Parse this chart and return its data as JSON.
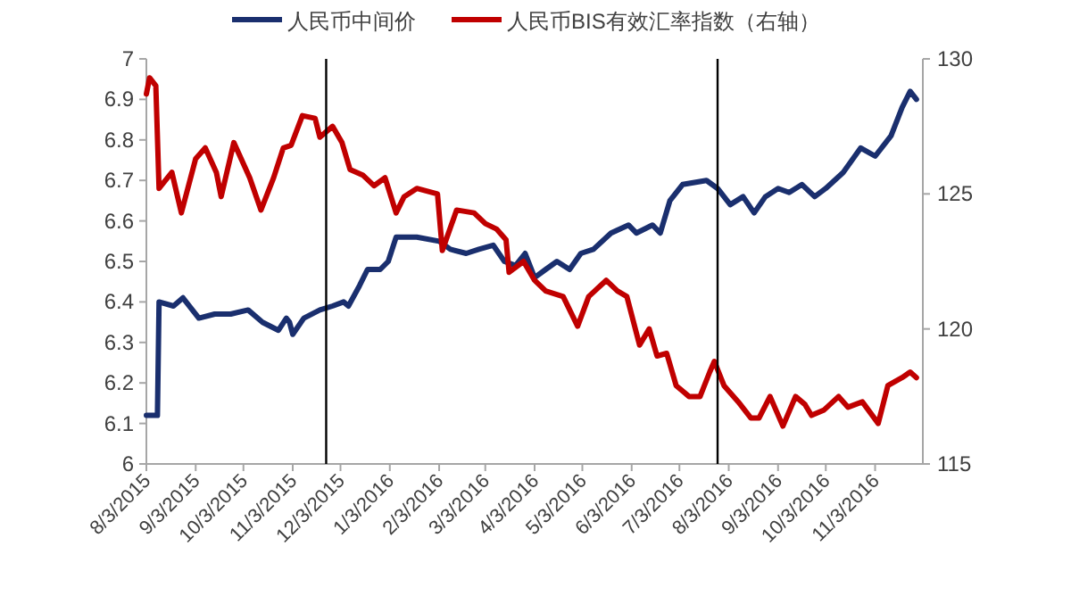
{
  "chart_data": {
    "type": "line",
    "legend": "top",
    "grid": false,
    "line_style": "solid",
    "marker": "none",
    "xlim": [
      "2015-08-03",
      "2016-12-03"
    ],
    "xticks": [
      {
        "value": "2015-08-03",
        "label": "8/3/2015"
      },
      {
        "value": "2015-09-03",
        "label": "9/3/2015"
      },
      {
        "value": "2015-10-03",
        "label": "10/3/2015"
      },
      {
        "value": "2015-11-03",
        "label": "11/3/2015"
      },
      {
        "value": "2015-12-03",
        "label": "12/3/2015"
      },
      {
        "value": "2016-01-03",
        "label": "1/3/2016"
      },
      {
        "value": "2016-02-03",
        "label": "2/3/2016"
      },
      {
        "value": "2016-03-03",
        "label": "3/3/2016"
      },
      {
        "value": "2016-04-03",
        "label": "4/3/2016"
      },
      {
        "value": "2016-05-03",
        "label": "5/3/2016"
      },
      {
        "value": "2016-06-03",
        "label": "6/3/2016"
      },
      {
        "value": "2016-07-03",
        "label": "7/3/2016"
      },
      {
        "value": "2016-08-03",
        "label": "8/3/2016"
      },
      {
        "value": "2016-09-03",
        "label": "9/3/2016"
      },
      {
        "value": "2016-10-03",
        "label": "10/3/2016"
      },
      {
        "value": "2016-11-03",
        "label": "11/3/2016"
      }
    ],
    "ylim": [
      6,
      7
    ],
    "yticks": [
      6,
      6.1,
      6.2,
      6.3,
      6.4,
      6.5,
      6.6,
      6.7,
      6.8,
      6.9,
      7
    ],
    "y2lim": [
      115,
      130
    ],
    "y2ticks": [
      115,
      120,
      125,
      130
    ],
    "ref_lines": [
      {
        "axis": "x",
        "value": "2015-11-24",
        "color": "#000000"
      },
      {
        "axis": "x",
        "value": "2016-07-27",
        "color": "#000000"
      }
    ],
    "series": [
      {
        "name": "人民币中间价",
        "color": "#1a2f6e",
        "x": [
          "2015-08-03",
          "2015-08-10",
          "2015-08-11",
          "2015-08-20",
          "2015-08-26",
          "2015-09-05",
          "2015-09-15",
          "2015-09-25",
          "2015-10-06",
          "2015-10-15",
          "2015-10-25",
          "2015-10-30",
          "2015-11-01",
          "2015-11-03",
          "2015-11-10",
          "2015-11-20",
          "2015-11-28",
          "2015-12-05",
          "2015-12-08",
          "2015-12-15",
          "2015-12-20",
          "2015-12-28",
          "2016-01-02",
          "2016-01-07",
          "2016-01-20",
          "2016-02-03",
          "2016-02-10",
          "2016-02-20",
          "2016-02-28",
          "2016-03-08",
          "2016-03-15",
          "2016-03-22",
          "2016-03-28",
          "2016-04-03",
          "2016-04-10",
          "2016-04-17",
          "2016-04-25",
          "2016-05-02",
          "2016-05-10",
          "2016-05-21",
          "2016-06-01",
          "2016-06-06",
          "2016-06-16",
          "2016-06-21",
          "2016-06-27",
          "2016-07-05",
          "2016-07-20",
          "2016-07-27",
          "2016-08-04",
          "2016-08-12",
          "2016-08-19",
          "2016-08-26",
          "2016-09-03",
          "2016-09-10",
          "2016-09-18",
          "2016-09-26",
          "2016-10-03",
          "2016-10-14",
          "2016-10-25",
          "2016-11-03",
          "2016-11-13",
          "2016-11-20",
          "2016-11-25",
          "2016-11-29"
        ],
        "values": [
          6.12,
          6.12,
          6.4,
          6.39,
          6.41,
          6.36,
          6.37,
          6.37,
          6.38,
          6.35,
          6.33,
          6.36,
          6.35,
          6.32,
          6.36,
          6.38,
          6.39,
          6.4,
          6.39,
          6.44,
          6.48,
          6.48,
          6.5,
          6.56,
          6.56,
          6.55,
          6.53,
          6.52,
          6.53,
          6.54,
          6.5,
          6.49,
          6.52,
          6.46,
          6.48,
          6.5,
          6.48,
          6.52,
          6.53,
          6.57,
          6.59,
          6.57,
          6.59,
          6.57,
          6.65,
          6.69,
          6.7,
          6.68,
          6.64,
          6.66,
          6.62,
          6.66,
          6.68,
          6.67,
          6.69,
          6.66,
          6.68,
          6.72,
          6.78,
          6.76,
          6.81,
          6.88,
          6.92,
          6.9
        ]
      },
      {
        "name": "人民币BIS有效汇率指数（右轴）",
        "color": "#c00000",
        "axis": "y2",
        "x": [
          "2015-08-03",
          "2015-08-05",
          "2015-08-09",
          "2015-08-11",
          "2015-08-19",
          "2015-08-25",
          "2015-09-03",
          "2015-09-09",
          "2015-09-16",
          "2015-09-19",
          "2015-09-27",
          "2015-10-07",
          "2015-10-14",
          "2015-10-22",
          "2015-10-28",
          "2015-11-02",
          "2015-11-09",
          "2015-11-17",
          "2015-11-20",
          "2015-11-28",
          "2015-12-04",
          "2015-12-09",
          "2015-12-17",
          "2015-12-24",
          "2015-12-31",
          "2016-01-07",
          "2016-01-12",
          "2016-01-20",
          "2016-02-02",
          "2016-02-05",
          "2016-02-14",
          "2016-02-25",
          "2016-03-03",
          "2016-03-10",
          "2016-03-16",
          "2016-03-18",
          "2016-03-27",
          "2016-04-03",
          "2016-04-10",
          "2016-04-21",
          "2016-04-30",
          "2016-05-07",
          "2016-05-18",
          "2016-05-25",
          "2016-05-31",
          "2016-06-08",
          "2016-06-14",
          "2016-06-19",
          "2016-06-25",
          "2016-07-01",
          "2016-07-09",
          "2016-07-16",
          "2016-07-22",
          "2016-07-25",
          "2016-07-31",
          "2016-08-09",
          "2016-08-17",
          "2016-08-22",
          "2016-08-29",
          "2016-09-06",
          "2016-09-14",
          "2016-09-20",
          "2016-09-24",
          "2016-10-02",
          "2016-10-11",
          "2016-10-17",
          "2016-10-26",
          "2016-11-05",
          "2016-11-11",
          "2016-11-20",
          "2016-11-25",
          "2016-11-29"
        ],
        "values": [
          128.7,
          129.3,
          129,
          125.2,
          125.8,
          124.3,
          126.3,
          126.7,
          125.8,
          124.9,
          126.9,
          125.6,
          124.4,
          125.6,
          126.7,
          126.8,
          127.9,
          127.8,
          127.1,
          127.5,
          126.9,
          125.9,
          125.7,
          125.3,
          125.6,
          124.3,
          124.9,
          125.2,
          125,
          122.9,
          124.4,
          124.3,
          123.9,
          123.7,
          123.3,
          122.1,
          122.5,
          121.8,
          121.4,
          121.2,
          120.1,
          121.2,
          121.8,
          121.4,
          121.2,
          119.4,
          120,
          119,
          119.1,
          117.9,
          117.5,
          117.5,
          118.4,
          118.8,
          117.9,
          117.3,
          116.7,
          116.7,
          117.5,
          116.4,
          117.5,
          117.2,
          116.8,
          117,
          117.5,
          117.1,
          117.3,
          116.5,
          117.9,
          118.2,
          118.4,
          118.2
        ]
      }
    ]
  }
}
